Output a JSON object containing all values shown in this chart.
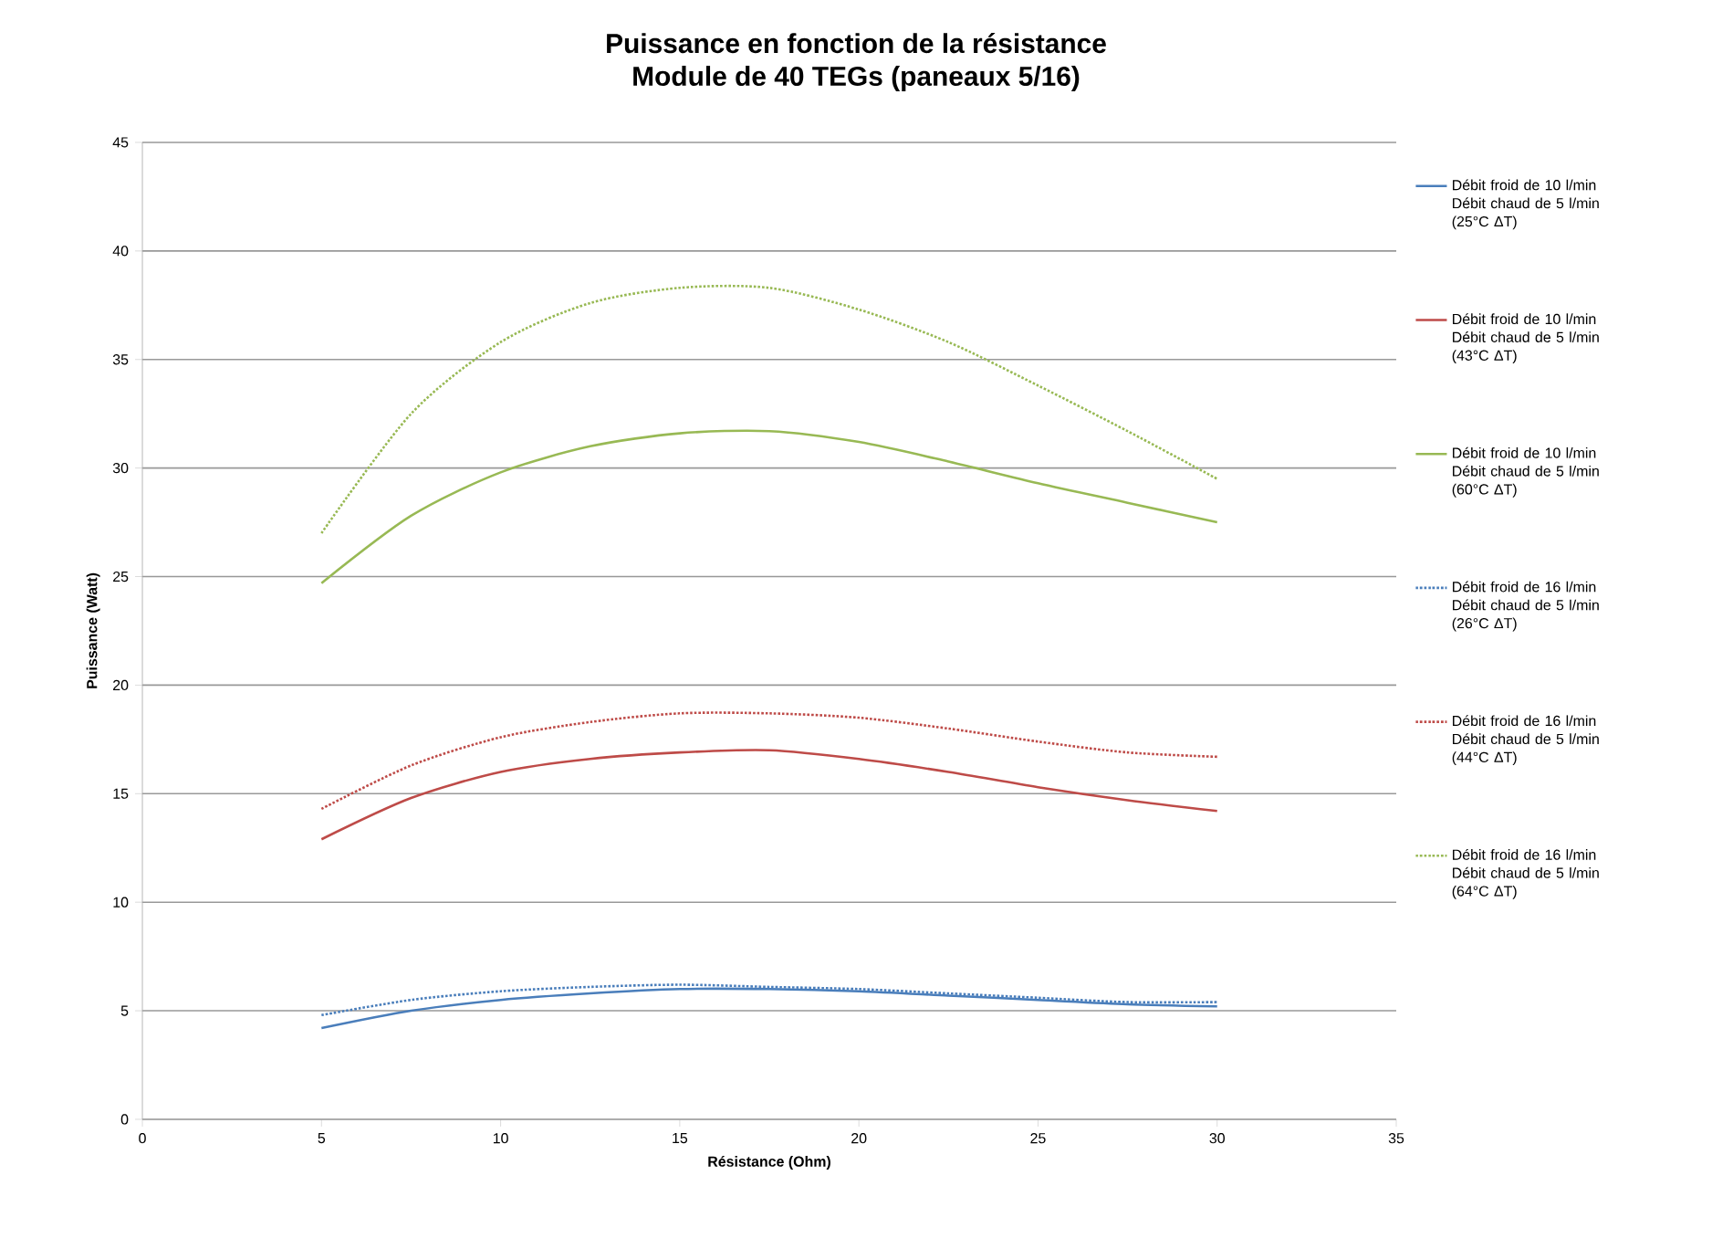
{
  "chart_data": {
    "type": "line",
    "title": "Puissance en fonction de la résistance",
    "subtitle": "Module de 40 TEGs (paneaux 5/16)",
    "xlabel": "Résistance (Ohm)",
    "ylabel": "Puissance (Watt)",
    "x": [
      5,
      7.5,
      10,
      12.5,
      15,
      17.5,
      20,
      22.5,
      25,
      27.5,
      30
    ],
    "xlim": [
      0,
      35
    ],
    "xticks": [
      0,
      5,
      10,
      15,
      20,
      25,
      30,
      35
    ],
    "ylim": [
      0,
      45
    ],
    "yticks": [
      0,
      5,
      10,
      15,
      20,
      25,
      30,
      35,
      40,
      45
    ],
    "grid": "y",
    "legend": "right",
    "marker": "none",
    "series": [
      {
        "name": "Débit froid de 10 l/min Débit chaud de 5 l/min (25°C ΔT)",
        "color": "#4a7ebb",
        "line_style": "solid",
        "values": [
          4.2,
          5.0,
          5.5,
          5.8,
          6.0,
          6.0,
          5.9,
          5.7,
          5.5,
          5.3,
          5.2
        ]
      },
      {
        "name": "Débit froid de 10 l/min Débit chaud de 5 l/min (43°C ΔT)",
        "color": "#be4b48",
        "line_style": "solid",
        "values": [
          12.9,
          14.8,
          16.0,
          16.6,
          16.9,
          17.0,
          16.6,
          16.0,
          15.3,
          14.7,
          14.2
        ]
      },
      {
        "name": "Débit froid de 10 l/min Débit chaud de 5 l/min (60°C ΔT)",
        "color": "#98b954",
        "line_style": "solid",
        "values": [
          24.7,
          27.8,
          29.8,
          31.0,
          31.6,
          31.7,
          31.2,
          30.3,
          29.3,
          28.4,
          27.5
        ]
      },
      {
        "name": "Débit froid de 16 l/min Débit chaud de 5 l/min (26°C ΔT)",
        "color": "#4a7ebb",
        "line_style": "dotted",
        "values": [
          4.8,
          5.5,
          5.9,
          6.1,
          6.2,
          6.1,
          6.0,
          5.8,
          5.6,
          5.4,
          5.4
        ]
      },
      {
        "name": "Débit froid de 16 l/min Débit chaud de 5 l/min (44°C ΔT)",
        "color": "#be4b48",
        "line_style": "dotted",
        "values": [
          14.3,
          16.3,
          17.6,
          18.3,
          18.7,
          18.7,
          18.5,
          18.0,
          17.4,
          16.9,
          16.7
        ]
      },
      {
        "name": "Débit froid de 16 l/min Débit chaud de 5 l/min (64°C ΔT)",
        "color": "#98b954",
        "line_style": "dotted",
        "values": [
          27.0,
          32.5,
          35.8,
          37.6,
          38.3,
          38.3,
          37.3,
          35.8,
          33.8,
          31.7,
          29.5
        ]
      }
    ]
  }
}
